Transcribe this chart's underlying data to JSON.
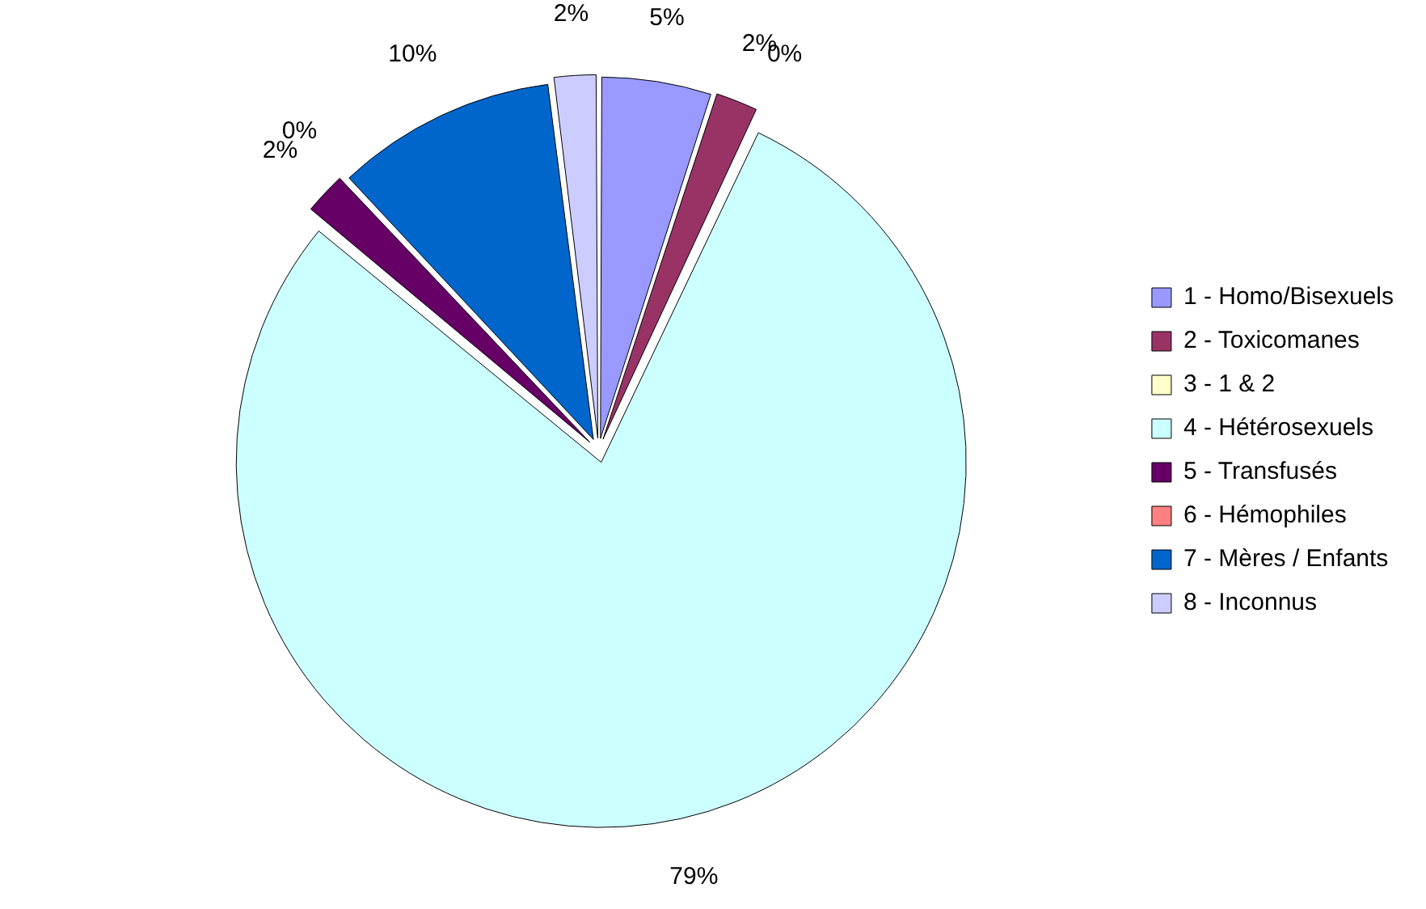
{
  "chart_data": {
    "type": "pie",
    "categories": [
      "1 - Homo/Bisexuels",
      "2 - Toxicomanes",
      "3 - 1 & 2",
      "4 - Hétérosexuels",
      "5 - Transfusés",
      "6 - Hémophiles",
      "7 - Mères / Enfants",
      "8 - Inconnus"
    ],
    "values": [
      5,
      2,
      0,
      79,
      2,
      0,
      10,
      2
    ],
    "colors": [
      "#9999ff",
      "#993366",
      "#ffffcc",
      "#ccffff",
      "#660066",
      "#ff8080",
      "#0066cc",
      "#ccccff"
    ],
    "value_labels": [
      "5%",
      "2%",
      "0%",
      "79%",
      "2%",
      "0%",
      "10%",
      "2%"
    ],
    "legend": "right"
  }
}
